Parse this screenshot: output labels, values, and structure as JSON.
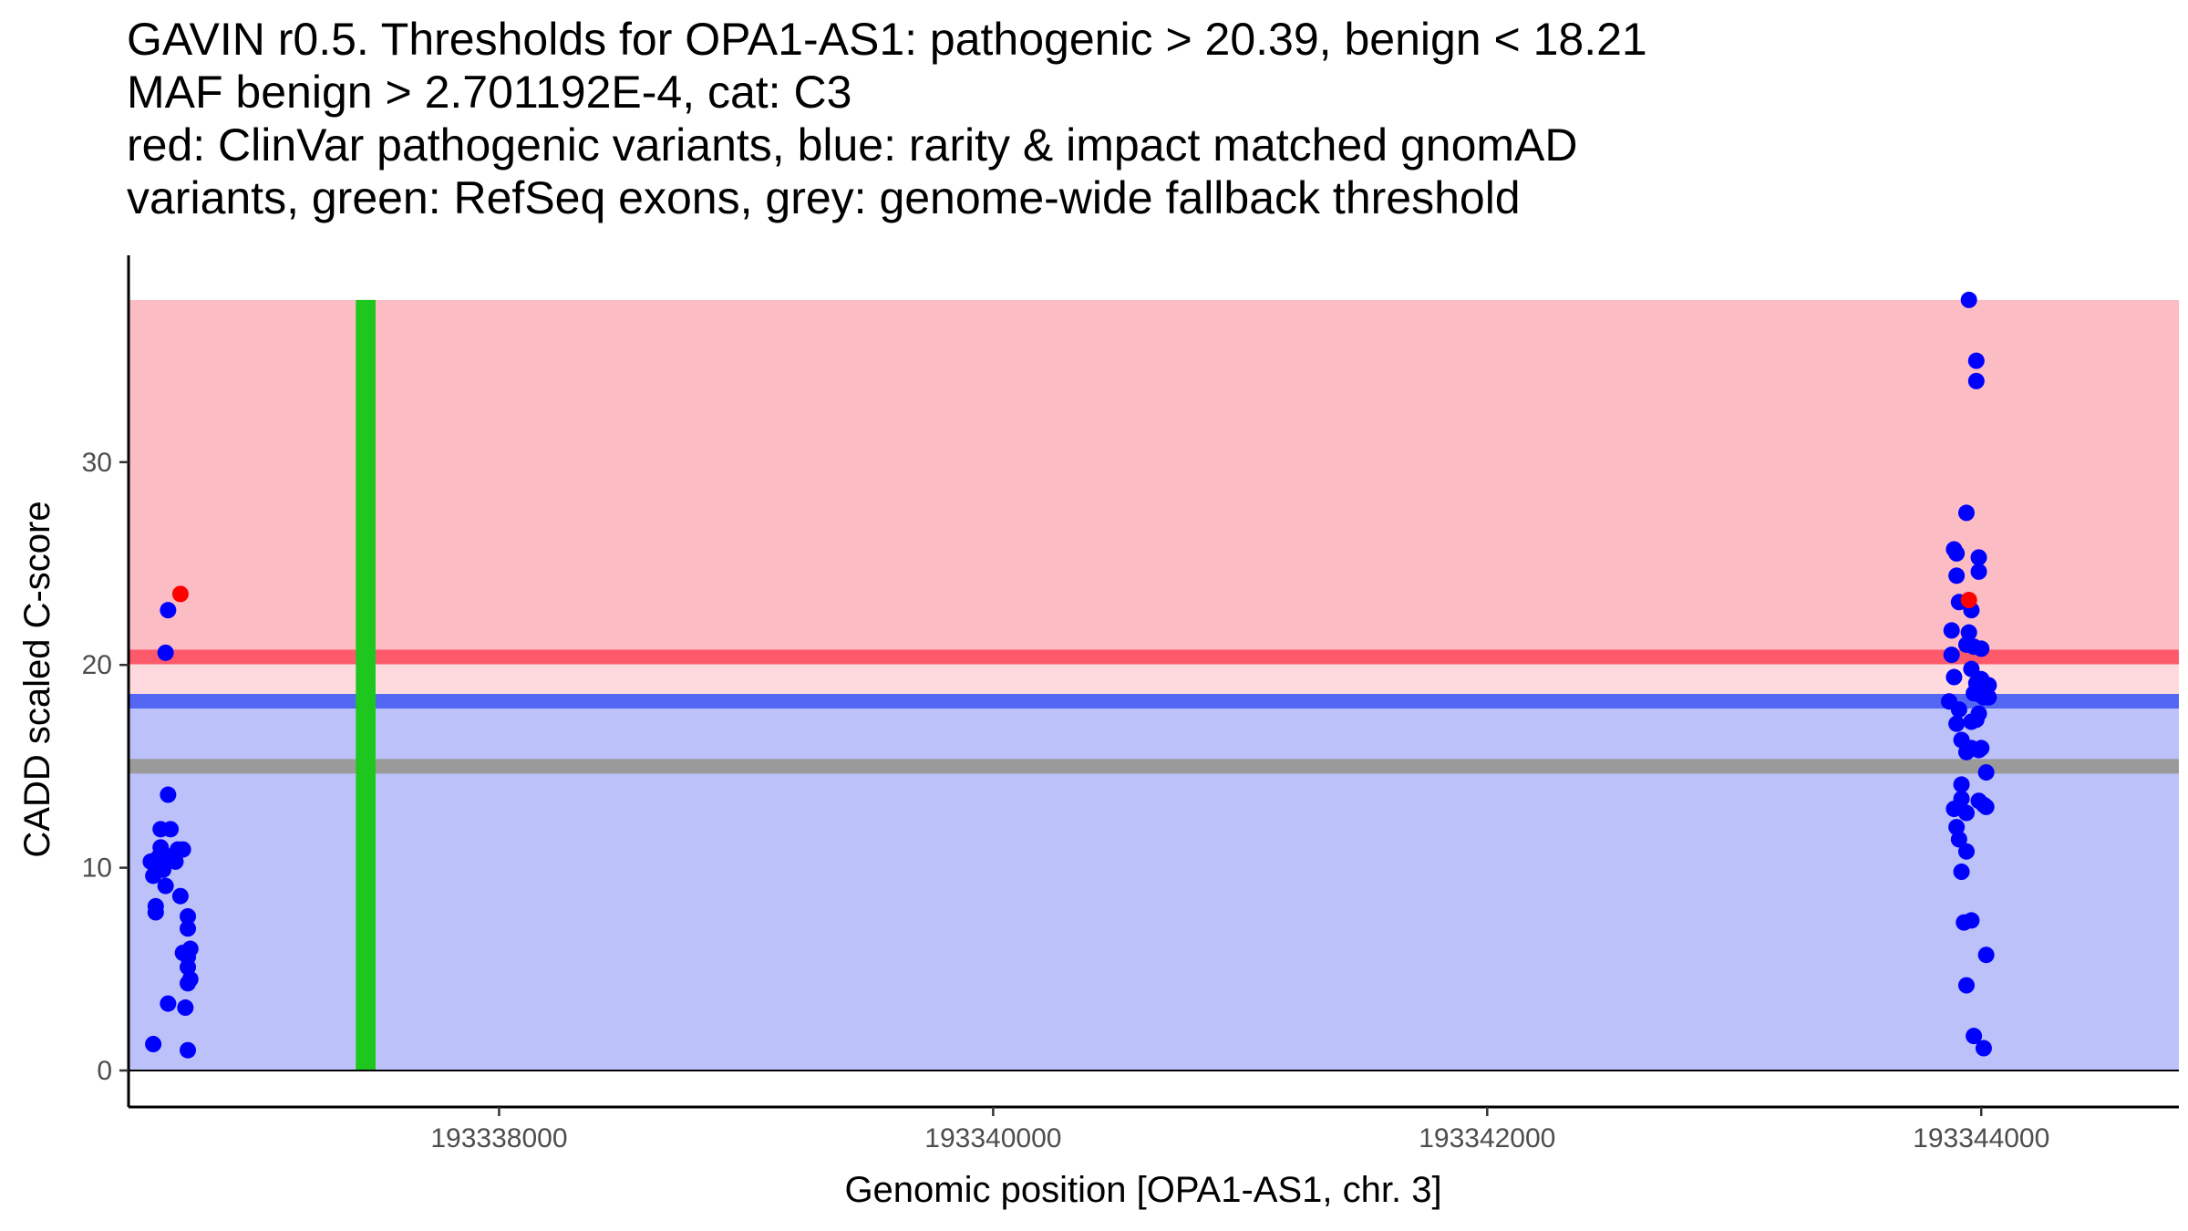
{
  "title_lines": [
    "GAVIN r0.5. Thresholds for OPA1-AS1: pathogenic > 20.39, benign < 18.21",
    "MAF benign > 2.701192E-4, cat: C3",
    "red: ClinVar pathogenic variants, blue: rarity & impact matched gnomAD",
    "variants, green: RefSeq exons, grey: genome-wide fallback threshold"
  ],
  "chart_data": {
    "type": "scatter",
    "xlabel": "Genomic position [OPA1-AS1, chr. 3]",
    "ylabel": "CADD scaled C-score",
    "xlim": [
      193336500,
      193344800
    ],
    "ylim": [
      -1.8,
      40.2
    ],
    "x_ticks": [
      193338000,
      193340000,
      193342000,
      193344000
    ],
    "x_tick_labels": [
      "193338000",
      "193340000",
      "193342000",
      "193344000"
    ],
    "y_ticks": [
      0,
      10,
      20,
      30
    ],
    "y_tick_labels": [
      "0",
      "10",
      "20",
      "30"
    ],
    "grid": false,
    "legend": "none",
    "colors": {
      "pathogenic_zone": "#fcbcc3",
      "pathogenic_line": "#fc5a6b",
      "middle_zone": "#fedade",
      "benign_line": "#5367f2",
      "benign_zone": "#bcc1fa",
      "fallback_line": "#9a9a9a",
      "exon": "#1ec71e",
      "gnomad_points": "#0000ff",
      "clinvar_points": "#ff0000",
      "axis": "#000000"
    },
    "thresholds": {
      "pathogenic": 20.39,
      "benign": 18.21,
      "fallback": 15.0,
      "max_score": 38.0
    },
    "exons": [
      {
        "start": 193337420,
        "end": 193337500
      }
    ],
    "series": [
      {
        "color_key": "gnomad_points",
        "points": [
          [
            193336600,
            1.3
          ],
          [
            193336610,
            8.1
          ],
          [
            193336610,
            7.8
          ],
          [
            193336590,
            10.3
          ],
          [
            193336600,
            9.6
          ],
          [
            193336620,
            10.5
          ],
          [
            193336630,
            11.9
          ],
          [
            193336630,
            11.0
          ],
          [
            193336640,
            9.9
          ],
          [
            193336650,
            10.3
          ],
          [
            193336650,
            9.1
          ],
          [
            193336660,
            3.3
          ],
          [
            193336660,
            13.6
          ],
          [
            193336670,
            11.9
          ],
          [
            193336680,
            10.6
          ],
          [
            193336690,
            10.3
          ],
          [
            193336700,
            10.9
          ],
          [
            193336720,
            10.9
          ],
          [
            193336710,
            8.6
          ],
          [
            193336720,
            5.8
          ],
          [
            193336740,
            7.6
          ],
          [
            193336740,
            7.0
          ],
          [
            193336740,
            5.6
          ],
          [
            193336740,
            5.1
          ],
          [
            193336750,
            6.0
          ],
          [
            193336740,
            4.3
          ],
          [
            193336750,
            4.5
          ],
          [
            193336730,
            3.1
          ],
          [
            193336740,
            1.0
          ],
          [
            193336650,
            20.6
          ],
          [
            193336660,
            22.7
          ],
          [
            193343870,
            18.2
          ],
          [
            193343880,
            20.5
          ],
          [
            193343880,
            21.7
          ],
          [
            193343890,
            25.7
          ],
          [
            193343900,
            25.5
          ],
          [
            193343900,
            24.4
          ],
          [
            193343910,
            23.1
          ],
          [
            193343890,
            19.4
          ],
          [
            193343900,
            17.1
          ],
          [
            193343910,
            17.8
          ],
          [
            193343920,
            16.3
          ],
          [
            193343890,
            12.9
          ],
          [
            193343900,
            12.0
          ],
          [
            193343920,
            14.1
          ],
          [
            193343920,
            13.4
          ],
          [
            193343910,
            11.4
          ],
          [
            193343920,
            9.8
          ],
          [
            193343940,
            10.8
          ],
          [
            193343940,
            12.7
          ],
          [
            193343930,
            7.3
          ],
          [
            193343960,
            7.4
          ],
          [
            193343940,
            4.2
          ],
          [
            193343970,
            1.7
          ],
          [
            193343940,
            27.5
          ],
          [
            193343960,
            22.7
          ],
          [
            193343950,
            21.6
          ],
          [
            193343940,
            21.0
          ],
          [
            193343970,
            20.9
          ],
          [
            193343960,
            19.8
          ],
          [
            193343980,
            19.1
          ],
          [
            193343970,
            18.6
          ],
          [
            193343990,
            18.9
          ],
          [
            193344000,
            19.3
          ],
          [
            193344000,
            18.5
          ],
          [
            193344010,
            18.4
          ],
          [
            193343990,
            17.6
          ],
          [
            193343980,
            17.3
          ],
          [
            193343960,
            17.2
          ],
          [
            193343960,
            15.9
          ],
          [
            193343940,
            15.7
          ],
          [
            193343990,
            15.8
          ],
          [
            193344000,
            15.9
          ],
          [
            193343990,
            13.3
          ],
          [
            193344010,
            13.1
          ],
          [
            193344020,
            14.7
          ],
          [
            193344020,
            13.0
          ],
          [
            193344030,
            19.0
          ],
          [
            193344030,
            18.4
          ],
          [
            193344020,
            5.7
          ],
          [
            193344010,
            1.1
          ],
          [
            193343990,
            25.3
          ],
          [
            193343990,
            24.6
          ],
          [
            193344000,
            20.8
          ],
          [
            193343950,
            38.0
          ],
          [
            193343980,
            35.0
          ],
          [
            193343980,
            34.0
          ]
        ]
      },
      {
        "color_key": "clinvar_points",
        "points": [
          [
            193336710,
            23.5
          ],
          [
            193343950,
            23.2
          ]
        ]
      }
    ]
  }
}
